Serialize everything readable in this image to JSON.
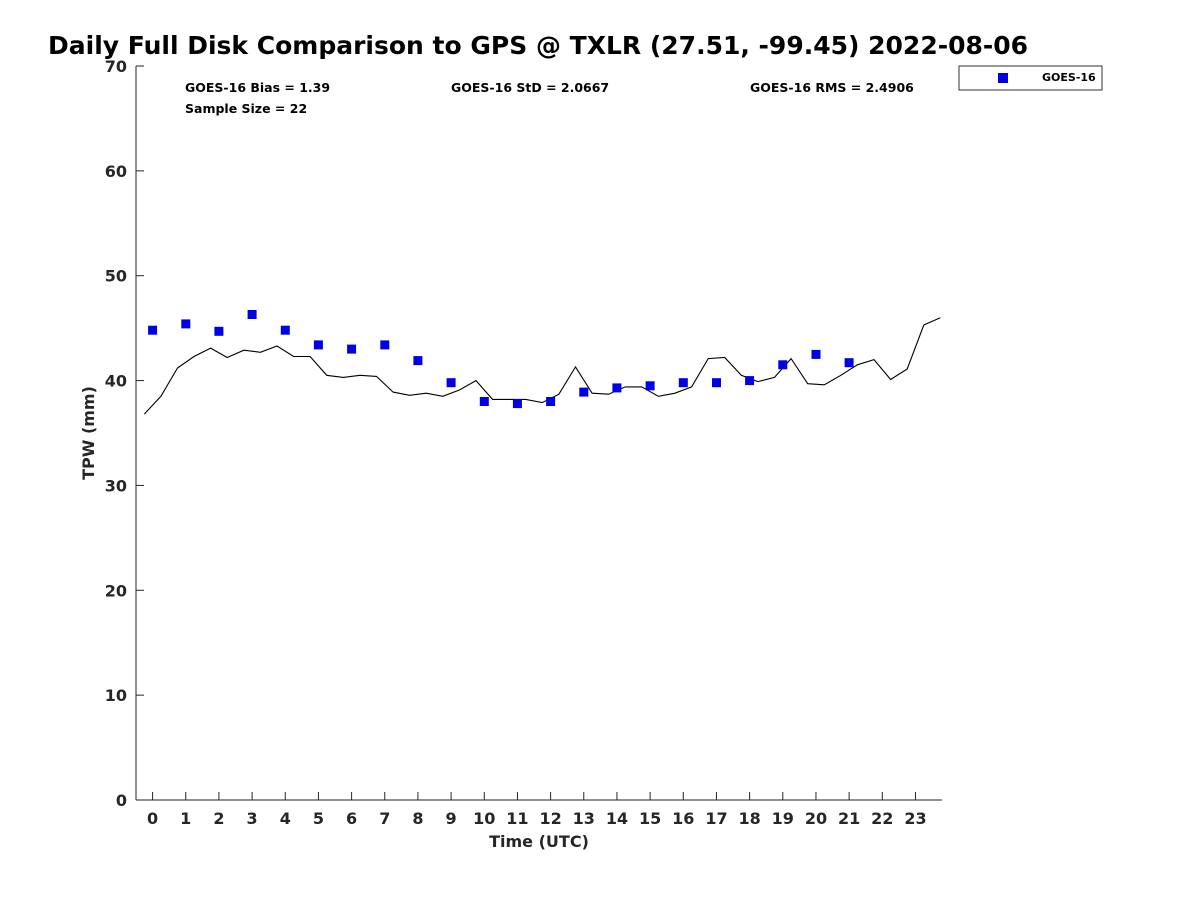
{
  "chart_data": {
    "type": "scatter",
    "title": "Daily Full Disk Comparison to GPS @ TXLR (27.51, -99.45) 2022-08-06",
    "xlabel": "Time (UTC)",
    "ylabel": "TPW (mm)",
    "xlim": [
      -0.5,
      23.8
    ],
    "ylim": [
      0,
      70
    ],
    "x_ticks": [
      0,
      1,
      2,
      3,
      4,
      5,
      6,
      7,
      8,
      9,
      10,
      11,
      12,
      13,
      14,
      15,
      16,
      17,
      18,
      19,
      20,
      21,
      22,
      23
    ],
    "y_ticks": [
      0,
      10,
      20,
      30,
      40,
      50,
      60,
      70
    ],
    "grid": false,
    "legend_position": "outside-top-right",
    "stats": {
      "bias": "GOES-16 Bias = 1.39",
      "std": "GOES-16 StD = 2.0667",
      "rms": "GOES-16 RMS = 2.4906",
      "sample_size": "Sample Size = 22"
    },
    "series": [
      {
        "name": "GOES-16",
        "kind": "marker",
        "color": "#0000e6",
        "x": [
          0,
          1,
          2,
          3,
          4,
          5,
          6,
          7,
          8,
          9,
          10,
          11,
          12,
          13,
          14,
          15,
          16,
          17,
          18,
          19,
          20,
          21
        ],
        "y": [
          44.8,
          45.4,
          44.7,
          46.3,
          44.8,
          43.4,
          43.0,
          43.4,
          41.9,
          39.8,
          38.0,
          37.8,
          38.0,
          38.9,
          39.3,
          39.5,
          39.8,
          39.8,
          40.0,
          41.5,
          42.5,
          41.7
        ]
      },
      {
        "kind": "line",
        "color": "#000000",
        "x": [
          -0.25,
          0.25,
          0.75,
          1.25,
          1.75,
          2.25,
          2.75,
          3.25,
          3.75,
          4.25,
          4.75,
          5.25,
          5.75,
          6.25,
          6.75,
          7.25,
          7.75,
          8.25,
          8.75,
          9.25,
          9.75,
          10.25,
          10.75,
          11.25,
          11.75,
          12.25,
          12.75,
          13.25,
          13.75,
          14.25,
          14.75,
          15.25,
          15.75,
          16.25,
          16.75,
          17.25,
          17.75,
          18.25,
          18.75,
          19.25,
          19.75,
          20.25,
          20.75,
          21.25,
          21.75,
          22.25,
          22.75,
          23.25,
          23.75
        ],
        "y": [
          36.8,
          38.5,
          41.2,
          42.3,
          43.1,
          42.2,
          42.9,
          42.7,
          43.3,
          42.3,
          42.3,
          40.5,
          40.3,
          40.5,
          40.4,
          38.9,
          38.6,
          38.8,
          38.5,
          39.1,
          40.0,
          38.2,
          38.2,
          38.2,
          37.9,
          38.7,
          41.3,
          38.8,
          38.7,
          39.4,
          39.4,
          38.5,
          38.8,
          39.4,
          42.1,
          42.2,
          40.5,
          39.9,
          40.3,
          42.1,
          39.7,
          39.6,
          40.5,
          41.5,
          42.0,
          40.1,
          41.1,
          45.3,
          46.0
        ]
      }
    ]
  }
}
